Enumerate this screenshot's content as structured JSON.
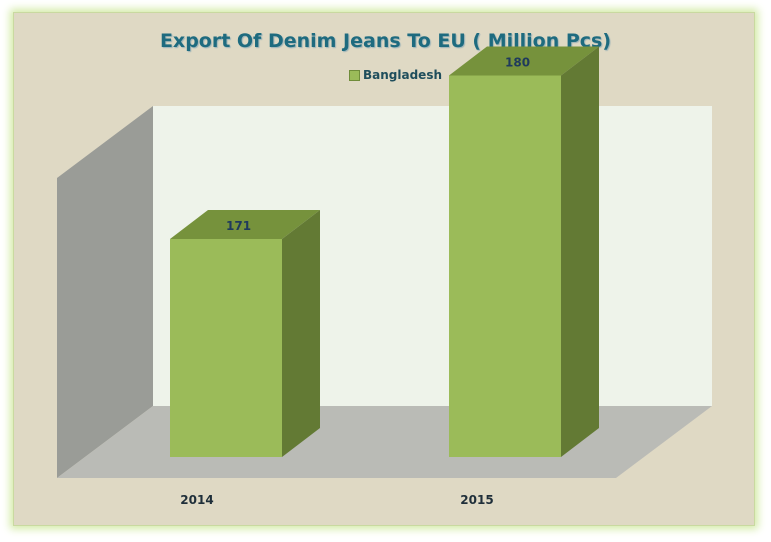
{
  "chart_data": {
    "type": "bar",
    "title": "Export Of Denim Jeans To EU ( Million Pcs)",
    "categories": [
      "2014",
      "2015"
    ],
    "series": [
      {
        "name": "Bangladesh",
        "values": [
          171,
          180
        ]
      }
    ],
    "ylim": [
      160,
      185
    ],
    "legend_position": "top",
    "grid": false,
    "three_d": true,
    "colors": {
      "bar_front": "#9bbb59",
      "bar_top": "#76923c",
      "bar_side": "#637a34",
      "back_wall": "#eef3ea",
      "side_wall": "#9a9c97",
      "floor": "#babbb6"
    }
  }
}
